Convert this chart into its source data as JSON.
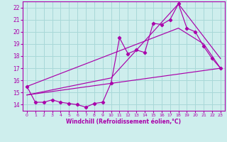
{
  "xlabel": "Windchill (Refroidissement éolien,°C)",
  "xlim": [
    -0.5,
    23.5
  ],
  "ylim": [
    13.5,
    22.5
  ],
  "yticks": [
    14,
    15,
    16,
    17,
    18,
    19,
    20,
    21,
    22
  ],
  "xticks": [
    0,
    1,
    2,
    3,
    4,
    5,
    6,
    7,
    8,
    9,
    10,
    11,
    12,
    13,
    14,
    15,
    16,
    17,
    18,
    19,
    20,
    21,
    22,
    23
  ],
  "bg_color": "#ceeeed",
  "grid_color": "#a8d8d8",
  "line_color": "#aa00aa",
  "line1_x": [
    0,
    1,
    2,
    3,
    4,
    5,
    6,
    7,
    8,
    9,
    10,
    11,
    12,
    13,
    14,
    15,
    16,
    17,
    18,
    19,
    20,
    21,
    22,
    23
  ],
  "line1_y": [
    15.5,
    14.2,
    14.2,
    14.4,
    14.2,
    14.1,
    14.0,
    13.8,
    14.1,
    14.2,
    15.8,
    19.5,
    18.2,
    18.5,
    18.3,
    20.7,
    20.6,
    21.0,
    22.3,
    20.3,
    20.0,
    18.8,
    17.8,
    17.0
  ],
  "line2_x": [
    0,
    23
  ],
  "line2_y": [
    14.8,
    17.0
  ],
  "line3_x": [
    0,
    18,
    21,
    23
  ],
  "line3_y": [
    15.5,
    20.3,
    19.0,
    17.0
  ],
  "line4_x": [
    0,
    10,
    18,
    23
  ],
  "line4_y": [
    14.8,
    16.2,
    22.3,
    17.8
  ]
}
